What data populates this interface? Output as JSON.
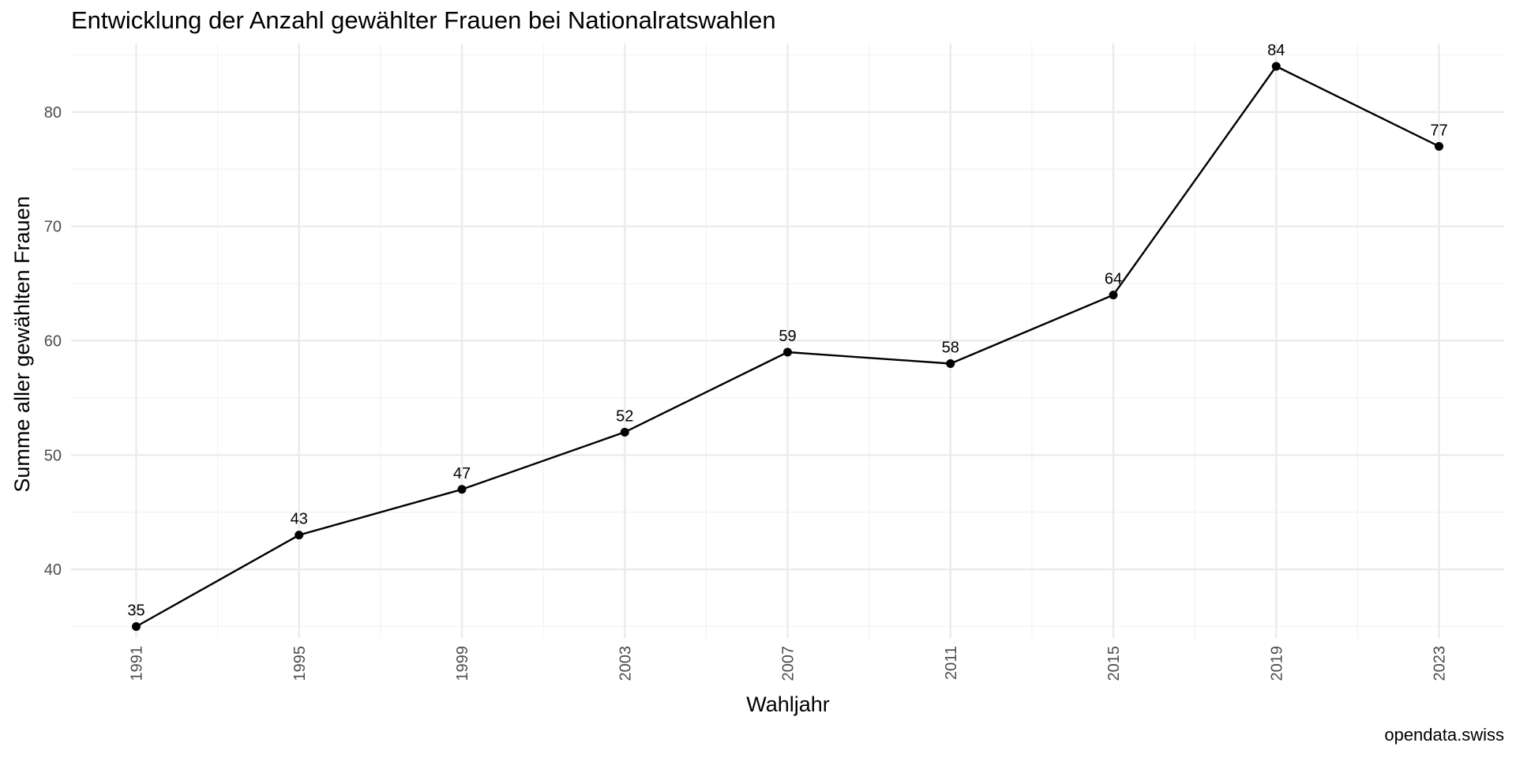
{
  "chart_data": {
    "type": "line",
    "title": "Entwicklung der Anzahl gewählter Frauen bei Nationalratswahlen",
    "xlabel": "Wahljahr",
    "ylabel": "Summe aller gewählten Frauen",
    "caption": "opendata.swiss",
    "x": [
      1991,
      1995,
      1999,
      2003,
      2007,
      2011,
      2015,
      2019,
      2023
    ],
    "series": [
      {
        "values": [
          35,
          43,
          47,
          52,
          59,
          58,
          64,
          84,
          77
        ]
      }
    ],
    "y_ticks": [
      40,
      50,
      60,
      70,
      80
    ],
    "ylim": [
      34,
      86
    ],
    "xlim": [
      1989.4,
      2024.6
    ],
    "grid": true,
    "data_labels": true,
    "colors": {
      "line": "#000000",
      "point": "#000000",
      "grid_major": "#ebebeb",
      "grid_minor": "#f3f3f3",
      "tick_text": "#4d4d4d"
    }
  }
}
